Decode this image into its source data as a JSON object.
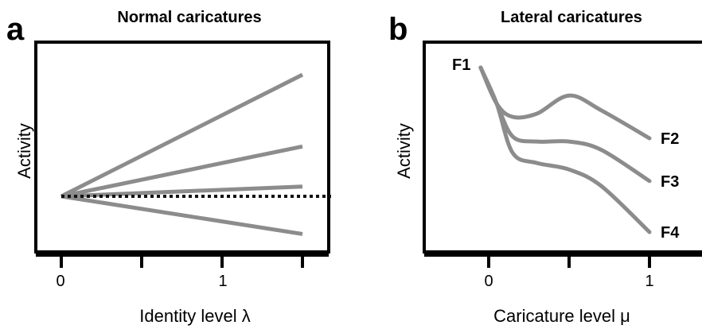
{
  "chart_data": [
    {
      "type": "line",
      "panel": "a",
      "title": "Normal caricatures",
      "xlabel": "Identity level λ",
      "ylabel": "Activity",
      "xticks": [
        "0",
        "1"
      ],
      "xlim": [
        0,
        1.5
      ],
      "grid": false,
      "reference_line": {
        "y": 0,
        "style": "dotted"
      },
      "series": [
        {
          "x": [
            0,
            1.5
          ],
          "values": [
            0,
            1.0
          ]
        },
        {
          "x": [
            0,
            1.5
          ],
          "values": [
            0,
            0.41
          ]
        },
        {
          "x": [
            0,
            1.5
          ],
          "values": [
            0,
            0.08
          ]
        },
        {
          "x": [
            0,
            1.5
          ],
          "values": [
            0,
            -0.31
          ]
        }
      ]
    },
    {
      "type": "line",
      "panel": "b",
      "title": "Lateral caricatures",
      "xlabel": "Caricature level μ",
      "ylabel": "Activity",
      "xticks": [
        "0",
        "1"
      ],
      "xlim": [
        -0.1,
        1.2
      ],
      "grid": false,
      "start_label": "F1",
      "series": [
        {
          "name": "F2",
          "x": [
            -0.05,
            0.05,
            0.15,
            0.3,
            0.5,
            0.7,
            1.0
          ],
          "values": [
            1.0,
            0.78,
            0.7,
            0.72,
            0.83,
            0.74,
            0.57
          ]
        },
        {
          "name": "F3",
          "x": [
            -0.05,
            0.05,
            0.15,
            0.3,
            0.5,
            0.7,
            1.0
          ],
          "values": [
            1.0,
            0.78,
            0.58,
            0.55,
            0.55,
            0.5,
            0.31
          ]
        },
        {
          "name": "F4",
          "x": [
            -0.05,
            0.05,
            0.15,
            0.3,
            0.5,
            0.7,
            1.0
          ],
          "values": [
            1.0,
            0.78,
            0.48,
            0.42,
            0.38,
            0.28,
            0.0
          ]
        }
      ]
    }
  ]
}
